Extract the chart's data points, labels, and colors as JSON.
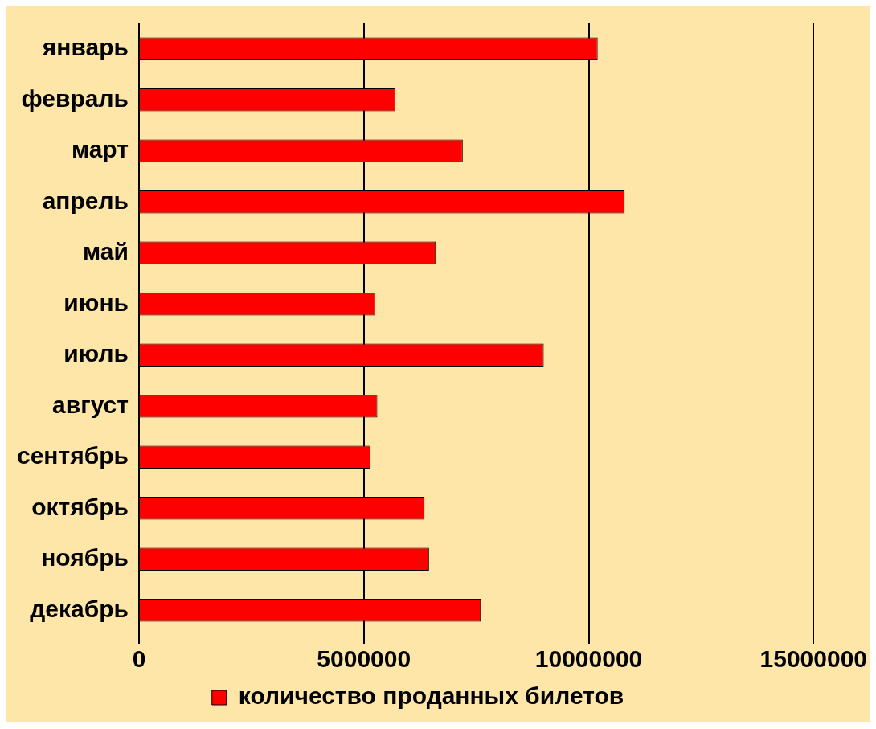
{
  "chart_data": {
    "type": "bar",
    "orientation": "horizontal",
    "categories": [
      "январь",
      "февраль",
      "март",
      "апрель",
      "май",
      "июнь",
      "июль",
      "август",
      "сентябрь",
      "октябрь",
      "ноябрь",
      "декабрь"
    ],
    "series": [
      {
        "name": "количество проданных билетов",
        "color": "#ff0000",
        "values": [
          10200000,
          5700000,
          7200000,
          10800000,
          6600000,
          5250000,
          9000000,
          5300000,
          5150000,
          6350000,
          6450000,
          7600000
        ]
      }
    ],
    "xlim": [
      0,
      15000000
    ],
    "xticks": [
      0,
      5000000,
      10000000,
      15000000
    ],
    "grid": "x",
    "legend": "bottom"
  }
}
